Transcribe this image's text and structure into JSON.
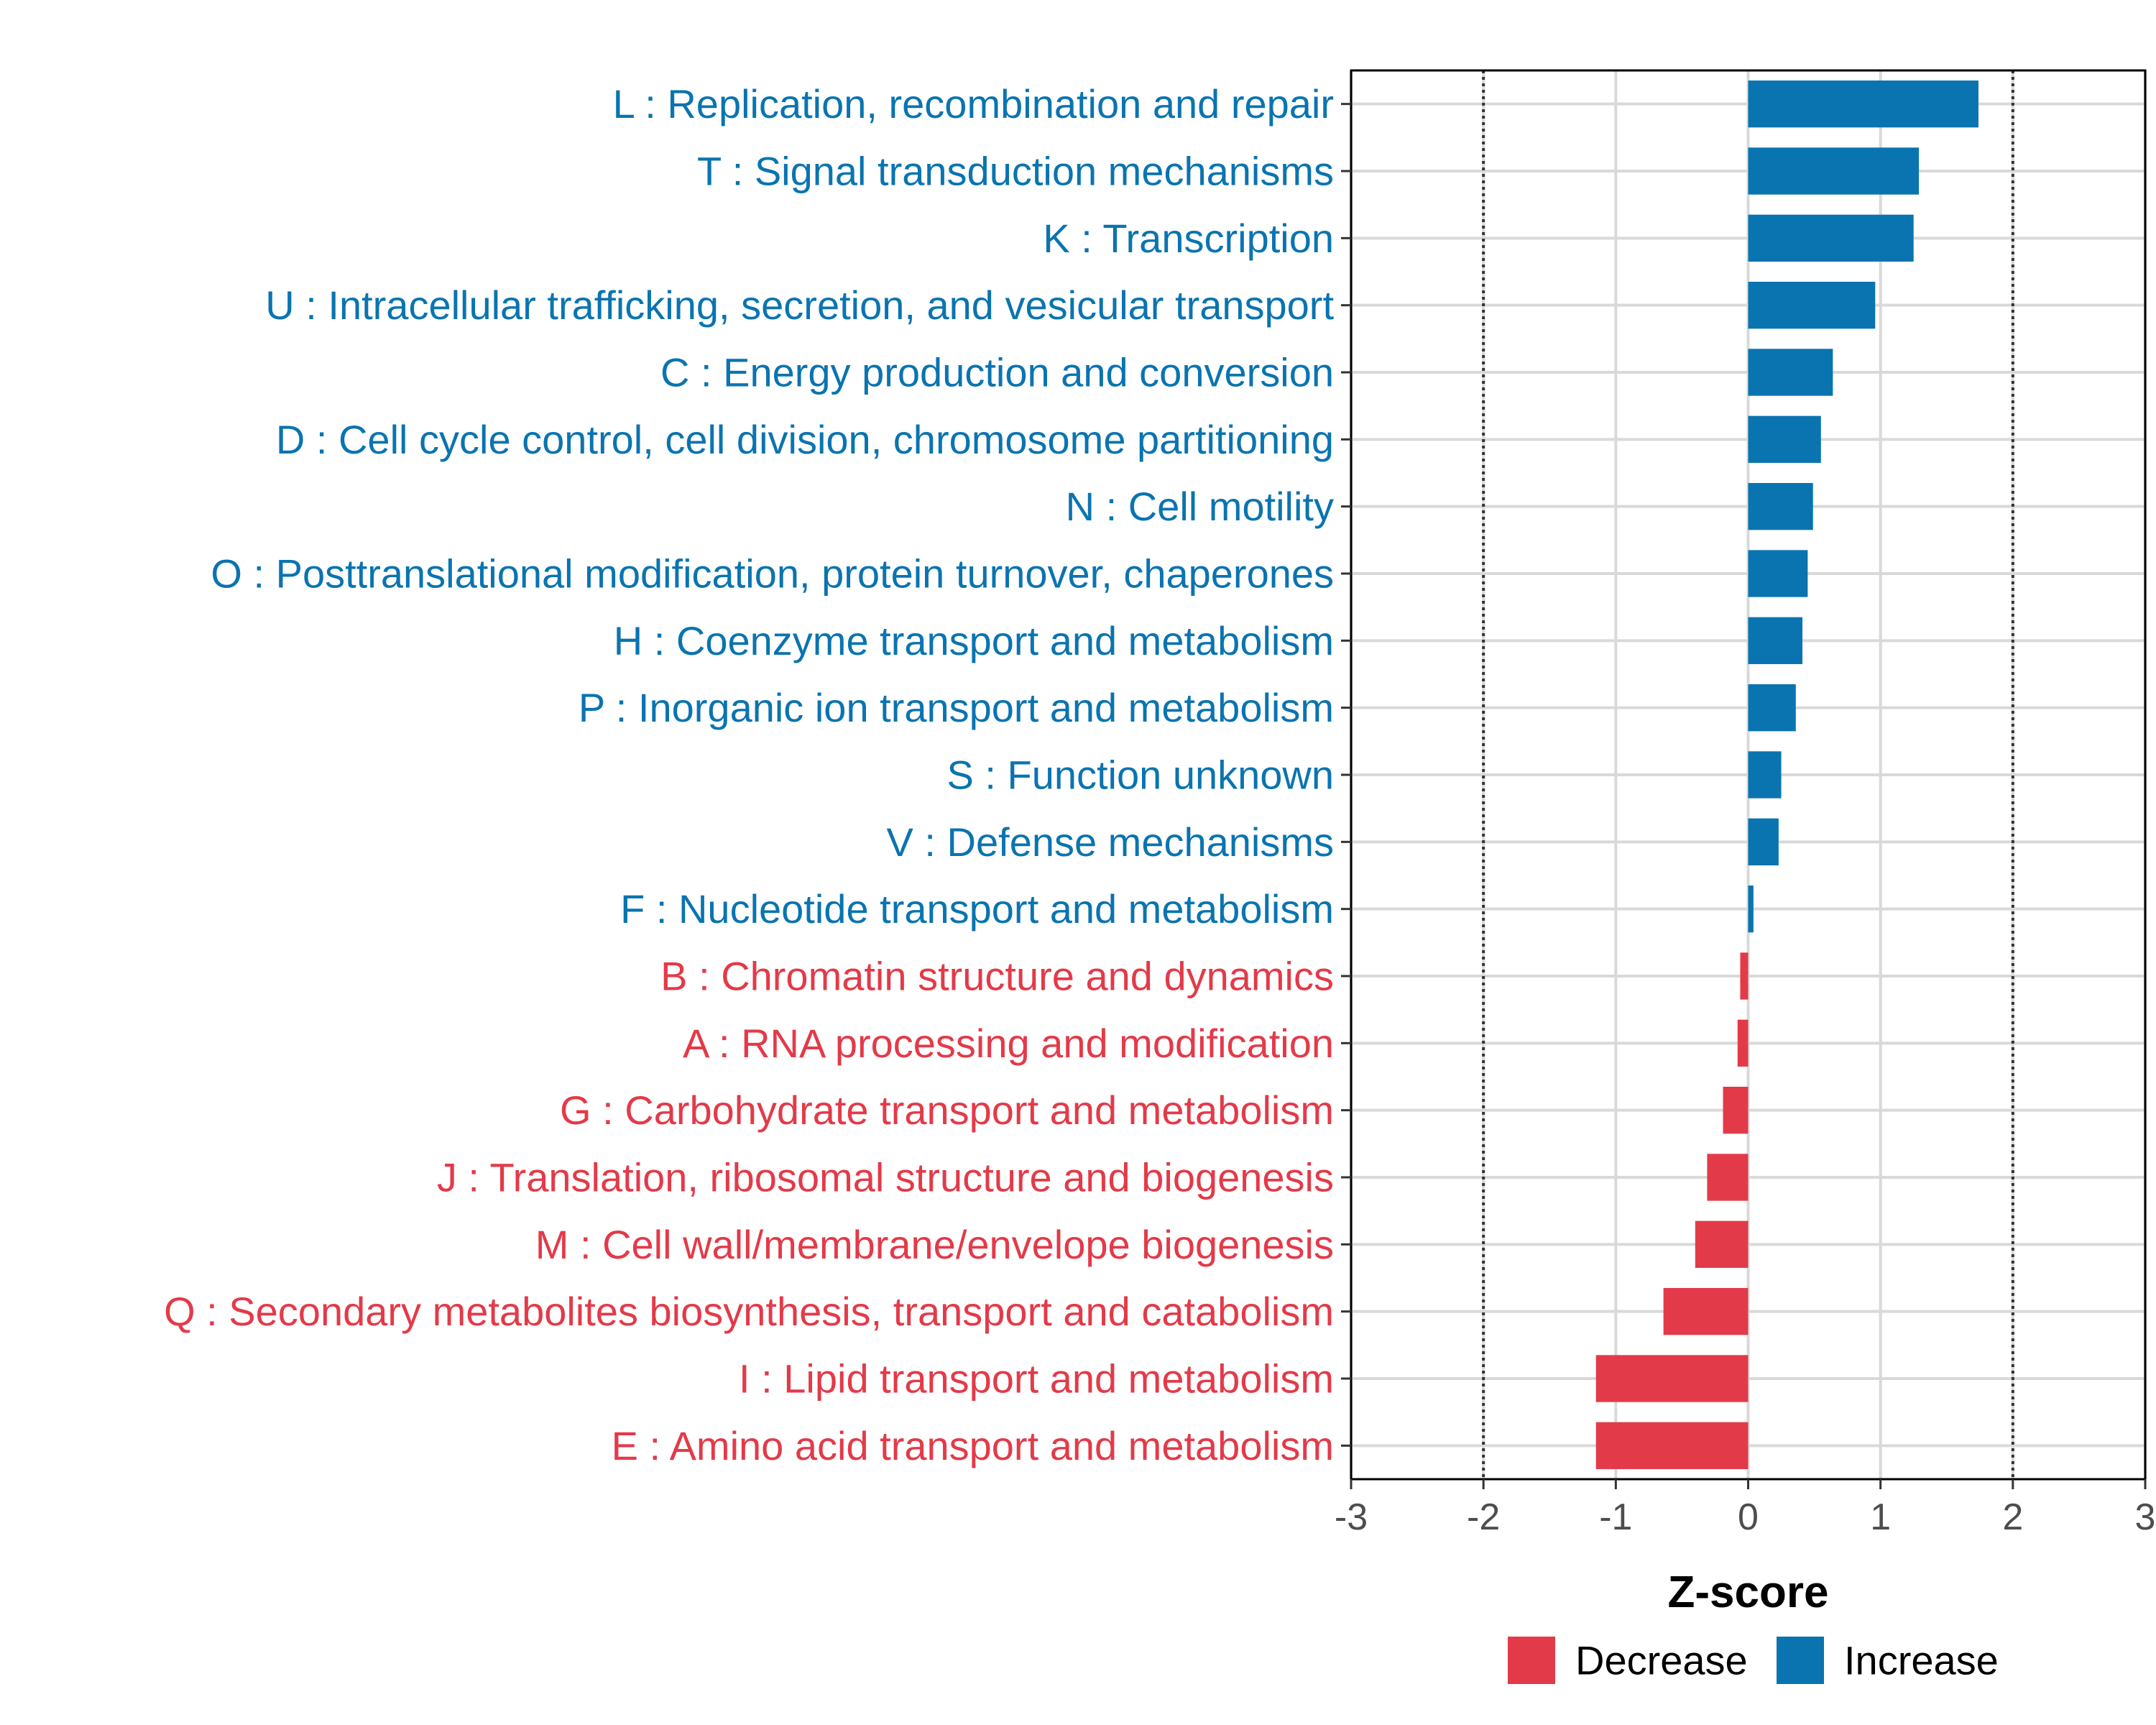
{
  "chart_data": {
    "type": "bar",
    "orientation": "horizontal",
    "xlabel": "Z-score",
    "ylabel": "",
    "xlim": [
      -3,
      3
    ],
    "x_ticks": [
      -3,
      -2,
      -1,
      0,
      1,
      2,
      3
    ],
    "x_tick_labels": [
      "-3",
      "-2",
      "-1",
      "0",
      "1",
      "2",
      "3"
    ],
    "reference_lines": [
      -2,
      2
    ],
    "grid": true,
    "colors": {
      "Increase": "#0a74b0",
      "Decrease": "#e33a49"
    },
    "categories": [
      "L : Replication, recombination and repair",
      "T : Signal transduction mechanisms",
      "K : Transcription",
      "U : Intracellular trafficking, secretion, and vesicular transport",
      "C : Energy production and conversion",
      "D : Cell cycle control, cell division, chromosome partitioning",
      "N : Cell motility",
      "O : Posttranslational modification, protein turnover, chaperones",
      "H : Coenzyme transport and metabolism",
      "P : Inorganic ion transport and metabolism",
      "S : Function unknown",
      "V : Defense mechanisms",
      "F : Nucleotide transport and metabolism",
      "B : Chromatin structure and dynamics",
      "A : RNA processing and modification",
      "G : Carbohydrate transport and metabolism",
      "J : Translation, ribosomal structure and biogenesis",
      "M : Cell wall/membrane/envelope biogenesis",
      "Q : Secondary metabolites biosynthesis, transport and catabolism",
      "I : Lipid transport and metabolism",
      "E : Amino acid transport and metabolism"
    ],
    "values": [
      1.74,
      1.29,
      1.25,
      0.96,
      0.64,
      0.55,
      0.49,
      0.45,
      0.41,
      0.36,
      0.25,
      0.23,
      0.04,
      -0.06,
      -0.08,
      -0.19,
      -0.31,
      -0.4,
      -0.64,
      -1.15,
      -1.15
    ],
    "groups": [
      "Increase",
      "Increase",
      "Increase",
      "Increase",
      "Increase",
      "Increase",
      "Increase",
      "Increase",
      "Increase",
      "Increase",
      "Increase",
      "Increase",
      "Increase",
      "Decrease",
      "Decrease",
      "Decrease",
      "Decrease",
      "Decrease",
      "Decrease",
      "Decrease",
      "Decrease"
    ],
    "legend": {
      "position": "bottom",
      "entries": [
        {
          "label": "Decrease",
          "color": "#e33a49"
        },
        {
          "label": "Increase",
          "color": "#0a74b0"
        }
      ]
    }
  }
}
